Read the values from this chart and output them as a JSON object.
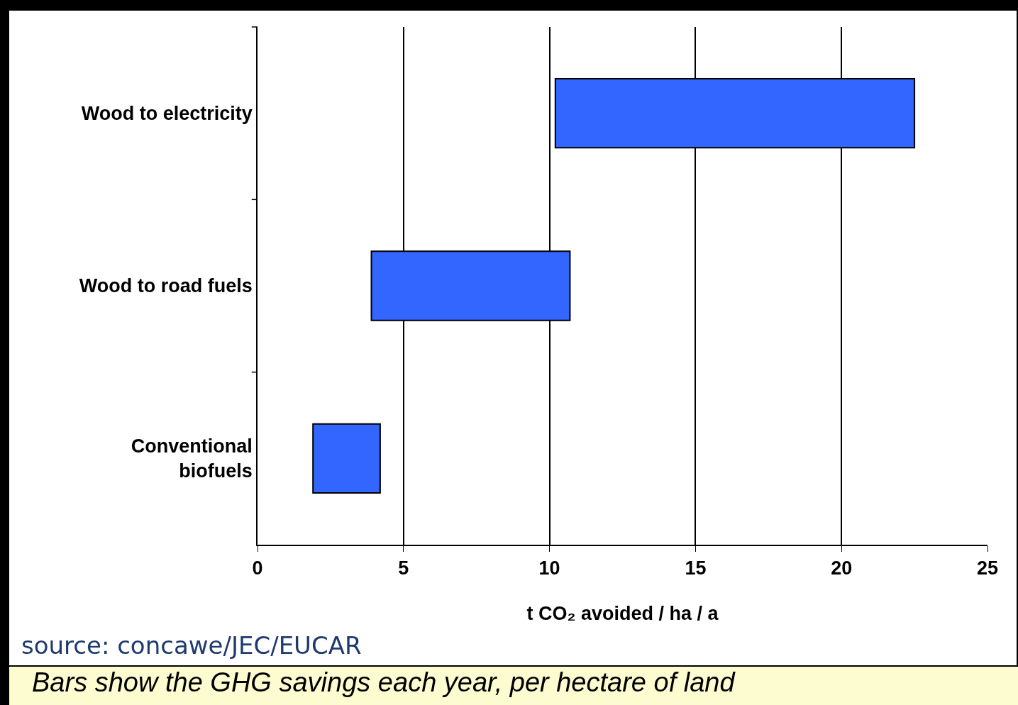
{
  "chart_data": {
    "type": "bar",
    "orientation": "horizontal",
    "categories": [
      "Wood to electricity",
      "Wood to road fuels",
      "Conventional biofuels"
    ],
    "base": [
      10.2,
      3.9,
      1.9
    ],
    "values": [
      12.3,
      6.8,
      2.3
    ],
    "color": "#3366ff",
    "xlim": [
      0,
      25
    ],
    "xticks": [
      0,
      5,
      10,
      15,
      20,
      25
    ],
    "xlabel": "t CO₂ avoided / ha / a",
    "grid": "x",
    "annotations": [
      "source: concawe/JEC/EUCAR",
      "Bars show the GHG savings each year, per hectare of land"
    ]
  }
}
